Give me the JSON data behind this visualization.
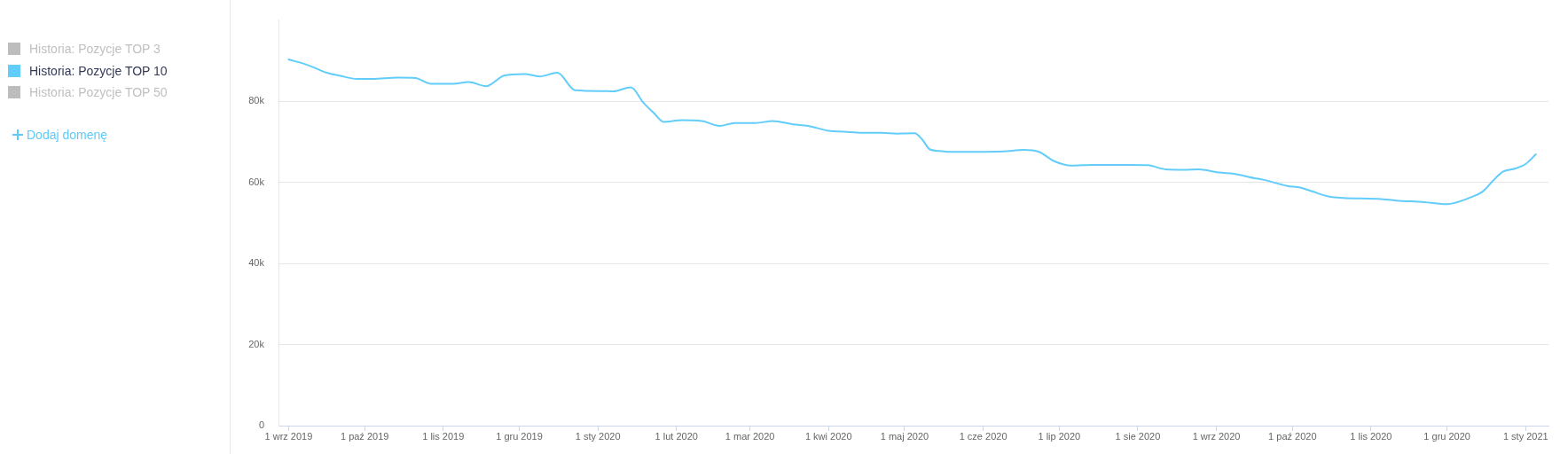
{
  "chart_data": {
    "type": "line",
    "x": [
      "2019-09-01",
      "2019-09-09",
      "2019-09-16",
      "2019-09-21",
      "2019-09-28",
      "2019-10-04",
      "2019-10-14",
      "2019-10-21",
      "2019-10-27",
      "2019-11-05",
      "2019-11-11",
      "2019-11-18",
      "2019-11-25",
      "2019-12-03",
      "2019-12-09",
      "2019-12-16",
      "2019-12-23",
      "2020-01-03",
      "2020-01-07",
      "2020-01-14",
      "2020-01-19",
      "2020-01-23",
      "2020-01-27",
      "2020-02-03",
      "2020-02-11",
      "2020-02-18",
      "2020-02-24",
      "2020-03-03",
      "2020-03-10",
      "2020-03-18",
      "2020-03-24",
      "2020-04-01",
      "2020-04-07",
      "2020-04-14",
      "2020-04-22",
      "2020-04-28",
      "2020-05-05",
      "2020-05-08",
      "2020-05-11",
      "2020-05-15",
      "2020-05-19",
      "2020-05-29",
      "2020-06-09",
      "2020-06-17",
      "2020-06-23",
      "2020-06-29",
      "2020-07-06",
      "2020-07-14",
      "2020-07-29",
      "2020-08-05",
      "2020-08-12",
      "2020-08-19",
      "2020-08-25",
      "2020-09-02",
      "2020-09-08",
      "2020-09-16",
      "2020-09-19",
      "2020-09-29",
      "2020-10-04",
      "2020-10-09",
      "2020-10-16",
      "2020-10-28",
      "2020-11-04",
      "2020-11-11",
      "2020-11-22",
      "2020-12-01",
      "2020-12-04",
      "2020-12-10",
      "2020-12-15",
      "2020-12-19",
      "2020-12-23",
      "2020-12-28",
      "2021-01-01",
      "2021-01-05"
    ],
    "series": [
      {
        "name": "Historia: Pozycje TOP 3",
        "color": "#bdbdbd",
        "values": [
          null,
          null,
          null,
          null,
          null,
          null,
          null,
          null,
          null,
          null,
          null,
          null,
          null,
          null,
          null,
          null,
          null,
          null,
          null,
          null,
          null,
          null,
          null,
          null,
          null,
          null,
          null,
          null,
          null,
          null,
          null,
          null,
          null,
          null,
          null,
          null,
          null,
          null,
          null,
          null,
          null,
          null,
          null,
          null,
          null,
          null,
          null,
          null,
          null,
          null,
          null,
          null,
          null,
          null,
          null,
          null,
          null,
          null,
          null,
          null,
          null,
          null,
          null,
          null,
          null,
          null,
          null,
          null,
          null,
          null,
          null,
          null,
          null,
          null
        ]
      },
      {
        "name": "Historia: Pozycje TOP 10",
        "color": "#62cdfa",
        "values": [
          90300,
          88800,
          87000,
          86300,
          85500,
          85500,
          85800,
          85700,
          84300,
          84300,
          84700,
          83700,
          86300,
          86700,
          86100,
          87000,
          82700,
          82500,
          82400,
          83400,
          79600,
          77100,
          74900,
          75300,
          75100,
          73900,
          74600,
          74600,
          75100,
          74300,
          73900,
          72700,
          72500,
          72200,
          72200,
          72000,
          72100,
          70500,
          68100,
          67700,
          67500,
          67500,
          67600,
          68000,
          67500,
          65200,
          64100,
          64300,
          64300,
          64200,
          63200,
          63100,
          63200,
          62400,
          62100,
          61000,
          60700,
          59100,
          58700,
          57700,
          56400,
          56000,
          55900,
          55500,
          55100,
          54600,
          54900,
          56200,
          57700,
          60300,
          62600,
          63400,
          64500,
          66900
        ]
      },
      {
        "name": "Historia: Pozycje TOP 50",
        "color": "#bdbdbd",
        "values": [
          null,
          null,
          null,
          null,
          null,
          null,
          null,
          null,
          null,
          null,
          null,
          null,
          null,
          null,
          null,
          null,
          null,
          null,
          null,
          null,
          null,
          null,
          null,
          null,
          null,
          null,
          null,
          null,
          null,
          null,
          null,
          null,
          null,
          null,
          null,
          null,
          null,
          null,
          null,
          null,
          null,
          null,
          null,
          null,
          null,
          null,
          null,
          null,
          null,
          null,
          null,
          null,
          null,
          null,
          null,
          null,
          null,
          null,
          null,
          null,
          null,
          null,
          null,
          null,
          null,
          null,
          null,
          null,
          null,
          null,
          null,
          null,
          null,
          null
        ]
      }
    ],
    "xlim": [
      "2019-08-28",
      "2021-01-10"
    ],
    "xticks": [
      {
        "value": "2019-09-01",
        "label": "1 wrz 2019"
      },
      {
        "value": "2019-10-01",
        "label": "1 paź 2019"
      },
      {
        "value": "2019-11-01",
        "label": "1 lis 2019"
      },
      {
        "value": "2019-12-01",
        "label": "1 gru 2019"
      },
      {
        "value": "2020-01-01",
        "label": "1 sty 2020"
      },
      {
        "value": "2020-02-01",
        "label": "1 lut 2020"
      },
      {
        "value": "2020-03-01",
        "label": "1 mar 2020"
      },
      {
        "value": "2020-04-01",
        "label": "1 kwi 2020"
      },
      {
        "value": "2020-05-01",
        "label": "1 maj 2020"
      },
      {
        "value": "2020-06-01",
        "label": "1 cze 2020"
      },
      {
        "value": "2020-07-01",
        "label": "1 lip 2020"
      },
      {
        "value": "2020-08-01",
        "label": "1 sie 2020"
      },
      {
        "value": "2020-09-01",
        "label": "1 wrz 2020"
      },
      {
        "value": "2020-10-01",
        "label": "1 paź 2020"
      },
      {
        "value": "2020-11-01",
        "label": "1 lis 2020"
      },
      {
        "value": "2020-12-01",
        "label": "1 gru 2020"
      },
      {
        "value": "2021-01-01",
        "label": "1 sty 2021"
      }
    ],
    "ylim": [
      0,
      100000
    ],
    "yticks": [
      0,
      {
        "value": 20000,
        "label": "20k"
      },
      {
        "value": 40000,
        "label": "40k"
      },
      {
        "value": 60000,
        "label": "60k"
      },
      {
        "value": 80000,
        "label": "80k"
      }
    ],
    "grid": "y",
    "legend": "left",
    "annotations": [
      "Dodaj domenę"
    ]
  }
}
